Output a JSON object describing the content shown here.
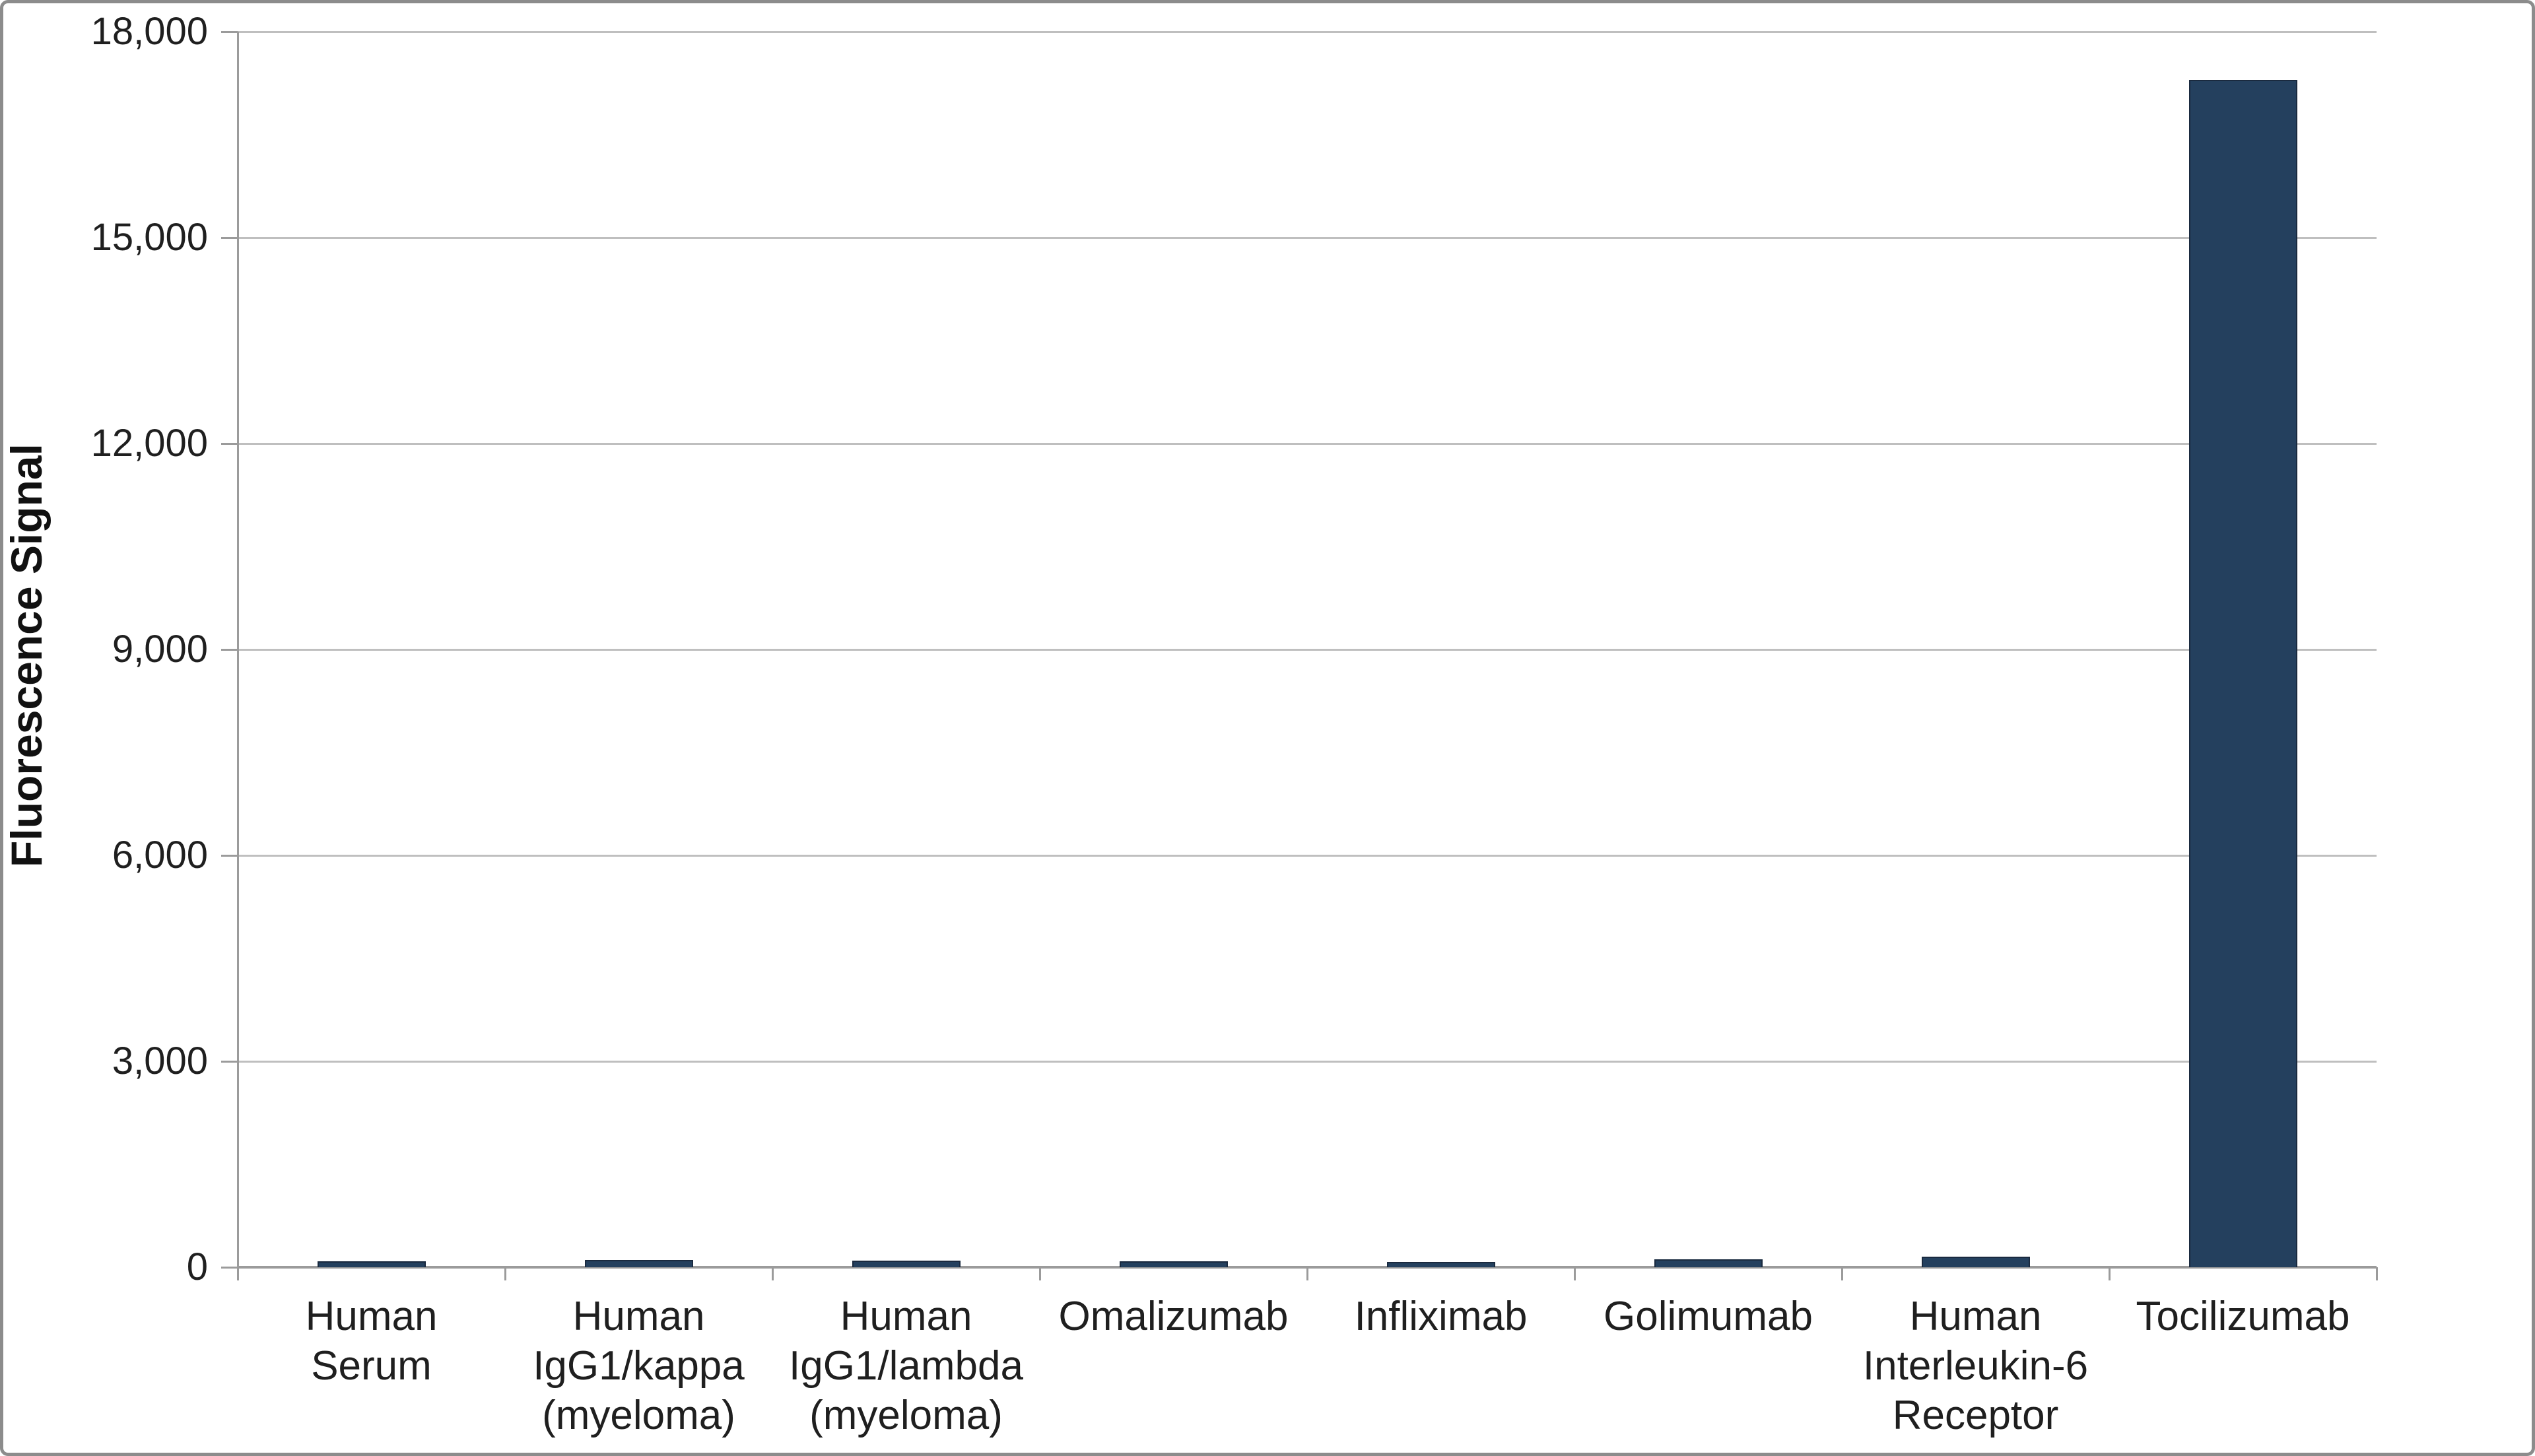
{
  "chart_data": {
    "type": "bar",
    "title": "",
    "ylabel": "Fluorescence Signal",
    "xlabel": "",
    "categories": [
      "Human Serum",
      "Human IgG1/kappa (myeloma)",
      "Human IgG1/lambda (myeloma)",
      "Omalizumab",
      "Infliximab",
      "Golimumab",
      "Human Interleukin-6 Receptor",
      "Tocilizumab"
    ],
    "category_lines": [
      [
        "Human",
        "Serum"
      ],
      [
        "Human",
        "IgG1/kappa",
        "(myeloma)"
      ],
      [
        "Human",
        "IgG1/lambda",
        "(myeloma)"
      ],
      [
        "Omalizumab"
      ],
      [
        "Infliximab"
      ],
      [
        "Golimumab"
      ],
      [
        "Human",
        "Interleukin-6",
        "Receptor"
      ],
      [
        "Tocilizumab"
      ]
    ],
    "values": [
      90,
      110,
      95,
      90,
      80,
      120,
      150,
      17300
    ],
    "ylim": [
      0,
      18000
    ],
    "ytick_interval": 3000,
    "ytick_labels": [
      "0",
      "3,000",
      "6,000",
      "9,000",
      "12,000",
      "15,000",
      "18,000"
    ],
    "grid": true,
    "legend_position": "none",
    "bar_color": "#24405e",
    "gridline_color": "#bfbfbf",
    "axis_color": "#9b9b9b",
    "text_color": "#1f1f1f"
  }
}
